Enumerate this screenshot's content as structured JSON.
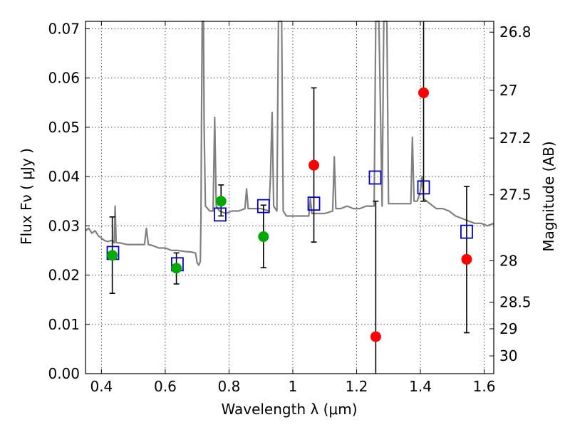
{
  "chart_data": {
    "type": "scatter",
    "xlabel": "Wavelength  λ (μm)",
    "ylabel": "Flux  Fν  ( μJy )",
    "ylabel_right": "Magnitude (AB)",
    "xlim": [
      0.35,
      1.63
    ],
    "ylim": [
      0.0,
      0.0715
    ],
    "x_ticks": [
      0.4,
      0.6,
      0.8,
      1.0,
      1.2,
      1.4,
      1.6
    ],
    "x_tick_labels": [
      "0.4",
      "0.6",
      "0.8",
      "1",
      "1.2",
      "1.4",
      "1.6"
    ],
    "y_ticks": [
      0.0,
      0.01,
      0.02,
      0.03,
      0.04,
      0.05,
      0.06,
      0.07
    ],
    "y_tick_labels": [
      "0.00",
      "0.01",
      "0.02",
      "0.03",
      "0.04",
      "0.05",
      "0.06",
      "0.07"
    ],
    "right_ticks": [
      {
        "flux": 0.0693,
        "label": "26.8"
      },
      {
        "flux": 0.0575,
        "label": "27"
      },
      {
        "flux": 0.0478,
        "label": "27.2"
      },
      {
        "flux": 0.0363,
        "label": "27.5"
      },
      {
        "flux": 0.0229,
        "label": "28"
      },
      {
        "flux": 0.0145,
        "label": "28.5"
      },
      {
        "flux": 0.0091,
        "label": "29"
      },
      {
        "flux": 0.0036,
        "label": "30"
      }
    ],
    "grid": true,
    "model_spectrum": {
      "color": "#808080",
      "points": [
        [
          0.35,
          0.029
        ],
        [
          0.36,
          0.0295
        ],
        [
          0.37,
          0.0285
        ],
        [
          0.38,
          0.029
        ],
        [
          0.39,
          0.028
        ],
        [
          0.4,
          0.0275
        ],
        [
          0.41,
          0.027
        ],
        [
          0.42,
          0.0268
        ],
        [
          0.43,
          0.027
        ],
        [
          0.436,
          0.027
        ],
        [
          0.44,
          0.0265
        ],
        [
          0.443,
          0.034
        ],
        [
          0.446,
          0.0266
        ],
        [
          0.46,
          0.0265
        ],
        [
          0.48,
          0.0262
        ],
        [
          0.5,
          0.0262
        ],
        [
          0.52,
          0.0262
        ],
        [
          0.535,
          0.0262
        ],
        [
          0.541,
          0.0295
        ],
        [
          0.547,
          0.0262
        ],
        [
          0.56,
          0.026
        ],
        [
          0.58,
          0.0255
        ],
        [
          0.6,
          0.0255
        ],
        [
          0.62,
          0.025
        ],
        [
          0.64,
          0.025
        ],
        [
          0.66,
          0.0248
        ],
        [
          0.68,
          0.0247
        ],
        [
          0.695,
          0.0245
        ],
        [
          0.7,
          0.0225
        ],
        [
          0.705,
          0.022
        ],
        [
          0.71,
          0.0228
        ],
        [
          0.712,
          0.032
        ],
        [
          0.714,
          0.053
        ],
        [
          0.716,
          0.0715
        ],
        [
          0.72,
          0.0715
        ],
        [
          0.722,
          0.05
        ],
        [
          0.726,
          0.034
        ],
        [
          0.74,
          0.033
        ],
        [
          0.75,
          0.033
        ],
        [
          0.755,
          0.052
        ],
        [
          0.76,
          0.034
        ],
        [
          0.77,
          0.033
        ],
        [
          0.79,
          0.0325
        ],
        [
          0.81,
          0.033
        ],
        [
          0.83,
          0.033
        ],
        [
          0.85,
          0.0335
        ],
        [
          0.855,
          0.0375
        ],
        [
          0.86,
          0.0335
        ],
        [
          0.88,
          0.0335
        ],
        [
          0.9,
          0.0335
        ],
        [
          0.925,
          0.033
        ],
        [
          0.93,
          0.04
        ],
        [
          0.935,
          0.053
        ],
        [
          0.94,
          0.034
        ],
        [
          0.95,
          0.033
        ],
        [
          0.955,
          0.0715
        ],
        [
          0.965,
          0.0715
        ],
        [
          0.97,
          0.033
        ],
        [
          0.98,
          0.032
        ],
        [
          1.0,
          0.032
        ],
        [
          1.02,
          0.032
        ],
        [
          1.04,
          0.032
        ],
        [
          1.05,
          0.032
        ],
        [
          1.055,
          0.0355
        ],
        [
          1.06,
          0.0325
        ],
        [
          1.08,
          0.0325
        ],
        [
          1.1,
          0.0325
        ],
        [
          1.125,
          0.033
        ],
        [
          1.13,
          0.044
        ],
        [
          1.135,
          0.0335
        ],
        [
          1.15,
          0.0335
        ],
        [
          1.17,
          0.034
        ],
        [
          1.19,
          0.0335
        ],
        [
          1.21,
          0.0335
        ],
        [
          1.23,
          0.034
        ],
        [
          1.255,
          0.034
        ],
        [
          1.26,
          0.0715
        ],
        [
          1.27,
          0.0715
        ],
        [
          1.28,
          0.034
        ],
        [
          1.285,
          0.0715
        ],
        [
          1.295,
          0.0715
        ],
        [
          1.3,
          0.0345
        ],
        [
          1.32,
          0.0345
        ],
        [
          1.34,
          0.0345
        ],
        [
          1.36,
          0.0345
        ],
        [
          1.37,
          0.0345
        ],
        [
          1.375,
          0.048
        ],
        [
          1.38,
          0.035
        ],
        [
          1.39,
          0.035
        ],
        [
          1.4,
          0.037
        ],
        [
          1.405,
          0.04
        ],
        [
          1.41,
          0.0355
        ],
        [
          1.43,
          0.0345
        ],
        [
          1.45,
          0.0335
        ],
        [
          1.47,
          0.0335
        ],
        [
          1.49,
          0.033
        ],
        [
          1.51,
          0.032
        ],
        [
          1.53,
          0.0315
        ],
        [
          1.55,
          0.031
        ],
        [
          1.57,
          0.0305
        ],
        [
          1.59,
          0.0305
        ],
        [
          1.61,
          0.03
        ],
        [
          1.63,
          0.0305
        ]
      ]
    },
    "series": [
      {
        "marker": "open-square",
        "color": "#0000cc",
        "points": [
          {
            "x": 0.436,
            "y": 0.0245
          },
          {
            "x": 0.638,
            "y": 0.0222
          },
          {
            "x": 0.772,
            "y": 0.0323
          },
          {
            "x": 0.908,
            "y": 0.034
          },
          {
            "x": 1.066,
            "y": 0.0345
          },
          {
            "x": 1.258,
            "y": 0.0398
          },
          {
            "x": 1.41,
            "y": 0.0378
          },
          {
            "x": 1.545,
            "y": 0.0288
          }
        ]
      },
      {
        "marker": "filled-circle",
        "color": "#00aa00",
        "points": [
          {
            "x": 0.434,
            "y": 0.024,
            "err_lo": 0.0163,
            "err_hi": 0.0318
          },
          {
            "x": 0.635,
            "y": 0.0214,
            "err_lo": 0.0182,
            "err_hi": 0.0245
          },
          {
            "x": 0.775,
            "y": 0.035,
            "err_lo": 0.032,
            "err_hi": 0.0383
          },
          {
            "x": 0.908,
            "y": 0.0278,
            "err_lo": 0.0215,
            "err_hi": 0.0342
          }
        ]
      },
      {
        "marker": "filled-circle",
        "color": "#ff0000",
        "points": [
          {
            "x": 1.066,
            "y": 0.0423,
            "err_lo": 0.0267,
            "err_hi": 0.058
          },
          {
            "x": 1.26,
            "y": 0.0075,
            "err_lo": 0.0,
            "err_hi": 0.035
          },
          {
            "x": 1.41,
            "y": 0.057,
            "err_lo": 0.035,
            "err_hi": 0.0715
          },
          {
            "x": 1.545,
            "y": 0.0232,
            "err_lo": 0.0083,
            "err_hi": 0.038
          }
        ]
      }
    ]
  }
}
